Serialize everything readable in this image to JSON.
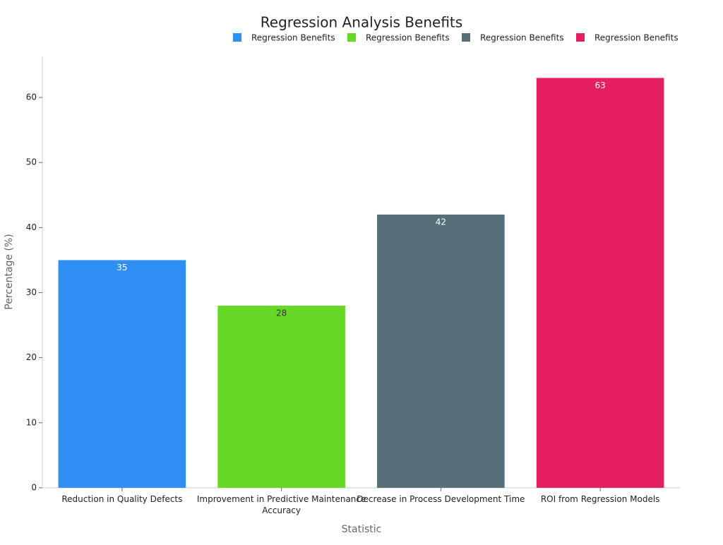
{
  "chart_data": {
    "type": "bar",
    "title": "Regression Analysis Benefits",
    "x_label": "Statistic",
    "y_label": "Percentage (%)",
    "categories": [
      "Reduction in Quality Defects",
      "Improvement in Predictive Maintenance Accuracy",
      "Decrease in Process Development Time",
      "ROI from Regression Models"
    ],
    "series": [
      {
        "name": "Regression Benefits",
        "color": "#2f8ff5",
        "values": [
          35,
          null,
          null,
          null
        ]
      },
      {
        "name": "Regression Benefits",
        "color": "#66d926",
        "values": [
          null,
          28,
          null,
          null
        ]
      },
      {
        "name": "Regression Benefits",
        "color": "#566f79",
        "values": [
          null,
          null,
          42,
          null
        ]
      },
      {
        "name": "Regression Benefits",
        "color": "#e61f62",
        "values": [
          null,
          null,
          null,
          63
        ]
      }
    ],
    "ylim": [
      0,
      66.3
    ],
    "yticks": [
      0,
      10,
      20,
      30,
      40,
      50,
      60
    ],
    "grid": false
  }
}
